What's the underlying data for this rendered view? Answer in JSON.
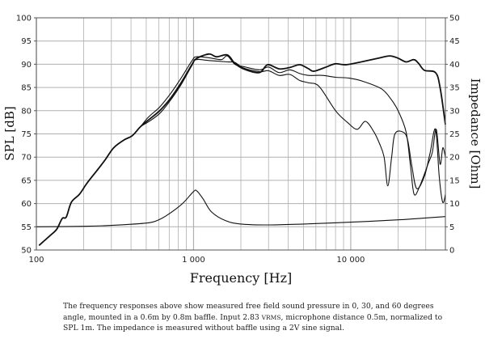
{
  "chart_data": {
    "type": "line",
    "xlabel": "Frequency [Hz]",
    "ylabel": "SPL [dB]",
    "y2label": "Impedance [Ohm]",
    "x_scale": "log",
    "xlim": [
      100,
      40000
    ],
    "ylim": [
      50,
      100
    ],
    "y2lim": [
      0,
      50
    ],
    "grid": true,
    "x_tick_labels": [
      {
        "v": 100,
        "t": "100"
      },
      {
        "v": 1000,
        "t": "1 000"
      },
      {
        "v": 10000,
        "t": "10 000"
      }
    ],
    "y_ticks": [
      50,
      55,
      60,
      65,
      70,
      75,
      80,
      85,
      90,
      95,
      100
    ],
    "y2_ticks": [
      0,
      5,
      10,
      15,
      20,
      25,
      30,
      35,
      40,
      45,
      50
    ],
    "line_color": "#111111",
    "grid_color": "#b0b0b0",
    "series": [
      {
        "axis": "spl",
        "points": [
          [
            104,
            51
          ],
          [
            124,
            53.3
          ],
          [
            135,
            54.5
          ],
          [
            146,
            56.8
          ],
          [
            155,
            57.1
          ],
          [
            167,
            60.3
          ],
          [
            188,
            62
          ],
          [
            209,
            64.3
          ],
          [
            244,
            67.2
          ],
          [
            275,
            69.5
          ],
          [
            310,
            72
          ],
          [
            361,
            73.7
          ],
          [
            407,
            74.6
          ],
          [
            458,
            76.5
          ],
          [
            516,
            78
          ],
          [
            609,
            80
          ],
          [
            711,
            82.6
          ],
          [
            833,
            86
          ],
          [
            979,
            90
          ],
          [
            1040,
            91.2
          ],
          [
            1250,
            92.2
          ],
          [
            1400,
            91.6
          ],
          [
            1640,
            92
          ],
          [
            1830,
            90.2
          ],
          [
            2080,
            89
          ],
          [
            2620,
            88.2
          ],
          [
            2960,
            89.9
          ],
          [
            3500,
            89
          ],
          [
            4100,
            89.3
          ],
          [
            4740,
            89.9
          ],
          [
            5400,
            89
          ],
          [
            5850,
            88.5
          ],
          [
            7100,
            89.5
          ],
          [
            8000,
            90.1
          ],
          [
            9400,
            89.9
          ],
          [
            12000,
            90.6
          ],
          [
            15000,
            91.3
          ],
          [
            17700,
            91.8
          ],
          [
            20000,
            91.3
          ],
          [
            22500,
            90.5
          ],
          [
            25200,
            91
          ],
          [
            27000,
            90.2
          ],
          [
            29400,
            88.7
          ],
          [
            34600,
            88.2
          ],
          [
            37000,
            85
          ],
          [
            40000,
            77
          ]
        ]
      },
      {
        "axis": "spl",
        "points": [
          [
            104,
            51
          ],
          [
            124,
            53.3
          ],
          [
            135,
            54.5
          ],
          [
            146,
            56.8
          ],
          [
            155,
            57.1
          ],
          [
            167,
            60.3
          ],
          [
            188,
            62
          ],
          [
            209,
            64.3
          ],
          [
            244,
            67.2
          ],
          [
            275,
            69.5
          ],
          [
            310,
            72
          ],
          [
            361,
            73.7
          ],
          [
            407,
            74.6
          ],
          [
            458,
            76.5
          ],
          [
            516,
            78.6
          ],
          [
            609,
            80.8
          ],
          [
            711,
            83.6
          ],
          [
            833,
            87
          ],
          [
            979,
            90.8
          ],
          [
            1040,
            91.6
          ],
          [
            1250,
            91.4
          ],
          [
            1500,
            91
          ],
          [
            1640,
            91.8
          ],
          [
            1830,
            90
          ],
          [
            2080,
            89.5
          ],
          [
            2620,
            88.8
          ],
          [
            3000,
            89.4
          ],
          [
            3500,
            88.2
          ],
          [
            4100,
            88.8
          ],
          [
            4740,
            88
          ],
          [
            5400,
            87.6
          ],
          [
            6600,
            87.6
          ],
          [
            8000,
            87.2
          ],
          [
            9800,
            87
          ],
          [
            12000,
            86.3
          ],
          [
            15700,
            84.7
          ],
          [
            18000,
            82.5
          ],
          [
            20000,
            80
          ],
          [
            22500,
            75.4
          ],
          [
            24000,
            68
          ],
          [
            25300,
            62
          ],
          [
            27500,
            63.8
          ],
          [
            31000,
            68.5
          ],
          [
            33000,
            71
          ],
          [
            35000,
            76
          ],
          [
            37000,
            68.5
          ],
          [
            38500,
            72
          ],
          [
            40000,
            70
          ]
        ]
      },
      {
        "axis": "spl",
        "points": [
          [
            104,
            51
          ],
          [
            124,
            53.3
          ],
          [
            135,
            54.5
          ],
          [
            146,
            56.8
          ],
          [
            155,
            57.1
          ],
          [
            167,
            60.3
          ],
          [
            188,
            62
          ],
          [
            209,
            64.3
          ],
          [
            244,
            67.2
          ],
          [
            275,
            69.5
          ],
          [
            310,
            72
          ],
          [
            361,
            73.7
          ],
          [
            407,
            74.6
          ],
          [
            458,
            76.5
          ],
          [
            516,
            77.6
          ],
          [
            609,
            79.4
          ],
          [
            711,
            82.2
          ],
          [
            833,
            85.6
          ],
          [
            979,
            89.8
          ],
          [
            1040,
            91
          ],
          [
            1250,
            90.8
          ],
          [
            1640,
            90.5
          ],
          [
            1830,
            90.4
          ],
          [
            2080,
            89.2
          ],
          [
            2620,
            88.4
          ],
          [
            3000,
            88.6
          ],
          [
            3500,
            87.6
          ],
          [
            4100,
            87.8
          ],
          [
            4740,
            86.5
          ],
          [
            5400,
            86
          ],
          [
            6300,
            85.2
          ],
          [
            8000,
            80
          ],
          [
            9500,
            77.5
          ],
          [
            11000,
            76
          ],
          [
            12400,
            77.7
          ],
          [
            14000,
            75.5
          ],
          [
            15200,
            73
          ],
          [
            16300,
            70
          ],
          [
            17200,
            63.8
          ],
          [
            18200,
            70
          ],
          [
            19100,
            75
          ],
          [
            21500,
            75.4
          ],
          [
            23000,
            73.7
          ],
          [
            24500,
            68
          ],
          [
            26300,
            63.2
          ],
          [
            29500,
            66
          ],
          [
            32000,
            71
          ],
          [
            34600,
            76
          ],
          [
            36500,
            66
          ],
          [
            38000,
            61
          ],
          [
            39000,
            60.3
          ],
          [
            40000,
            62
          ]
        ]
      },
      {
        "axis": "impedance",
        "points": [
          [
            100,
            5
          ],
          [
            200,
            5.1
          ],
          [
            300,
            5.3
          ],
          [
            500,
            5.8
          ],
          [
            600,
            6.5
          ],
          [
            700,
            7.8
          ],
          [
            850,
            10
          ],
          [
            1000,
            12.6
          ],
          [
            1050,
            12.7
          ],
          [
            1150,
            11
          ],
          [
            1300,
            8.2
          ],
          [
            1600,
            6.3
          ],
          [
            2000,
            5.6
          ],
          [
            3000,
            5.4
          ],
          [
            5000,
            5.6
          ],
          [
            10000,
            6
          ],
          [
            20000,
            6.5
          ],
          [
            30000,
            6.9
          ],
          [
            40000,
            7.2
          ]
        ]
      }
    ]
  },
  "caption": {
    "line1": "The frequency responses above show measured free field sound pressure in 0, 30, and 60 degrees angle, mounted in a 0.6m by 0.8m baffle. Input 2.83 ",
    "vrms": "VRMS",
    "line2": ", microphone distance 0.5m, normalized to SPL 1m. The impedance is measured without baffle using a 2V sine signal."
  }
}
